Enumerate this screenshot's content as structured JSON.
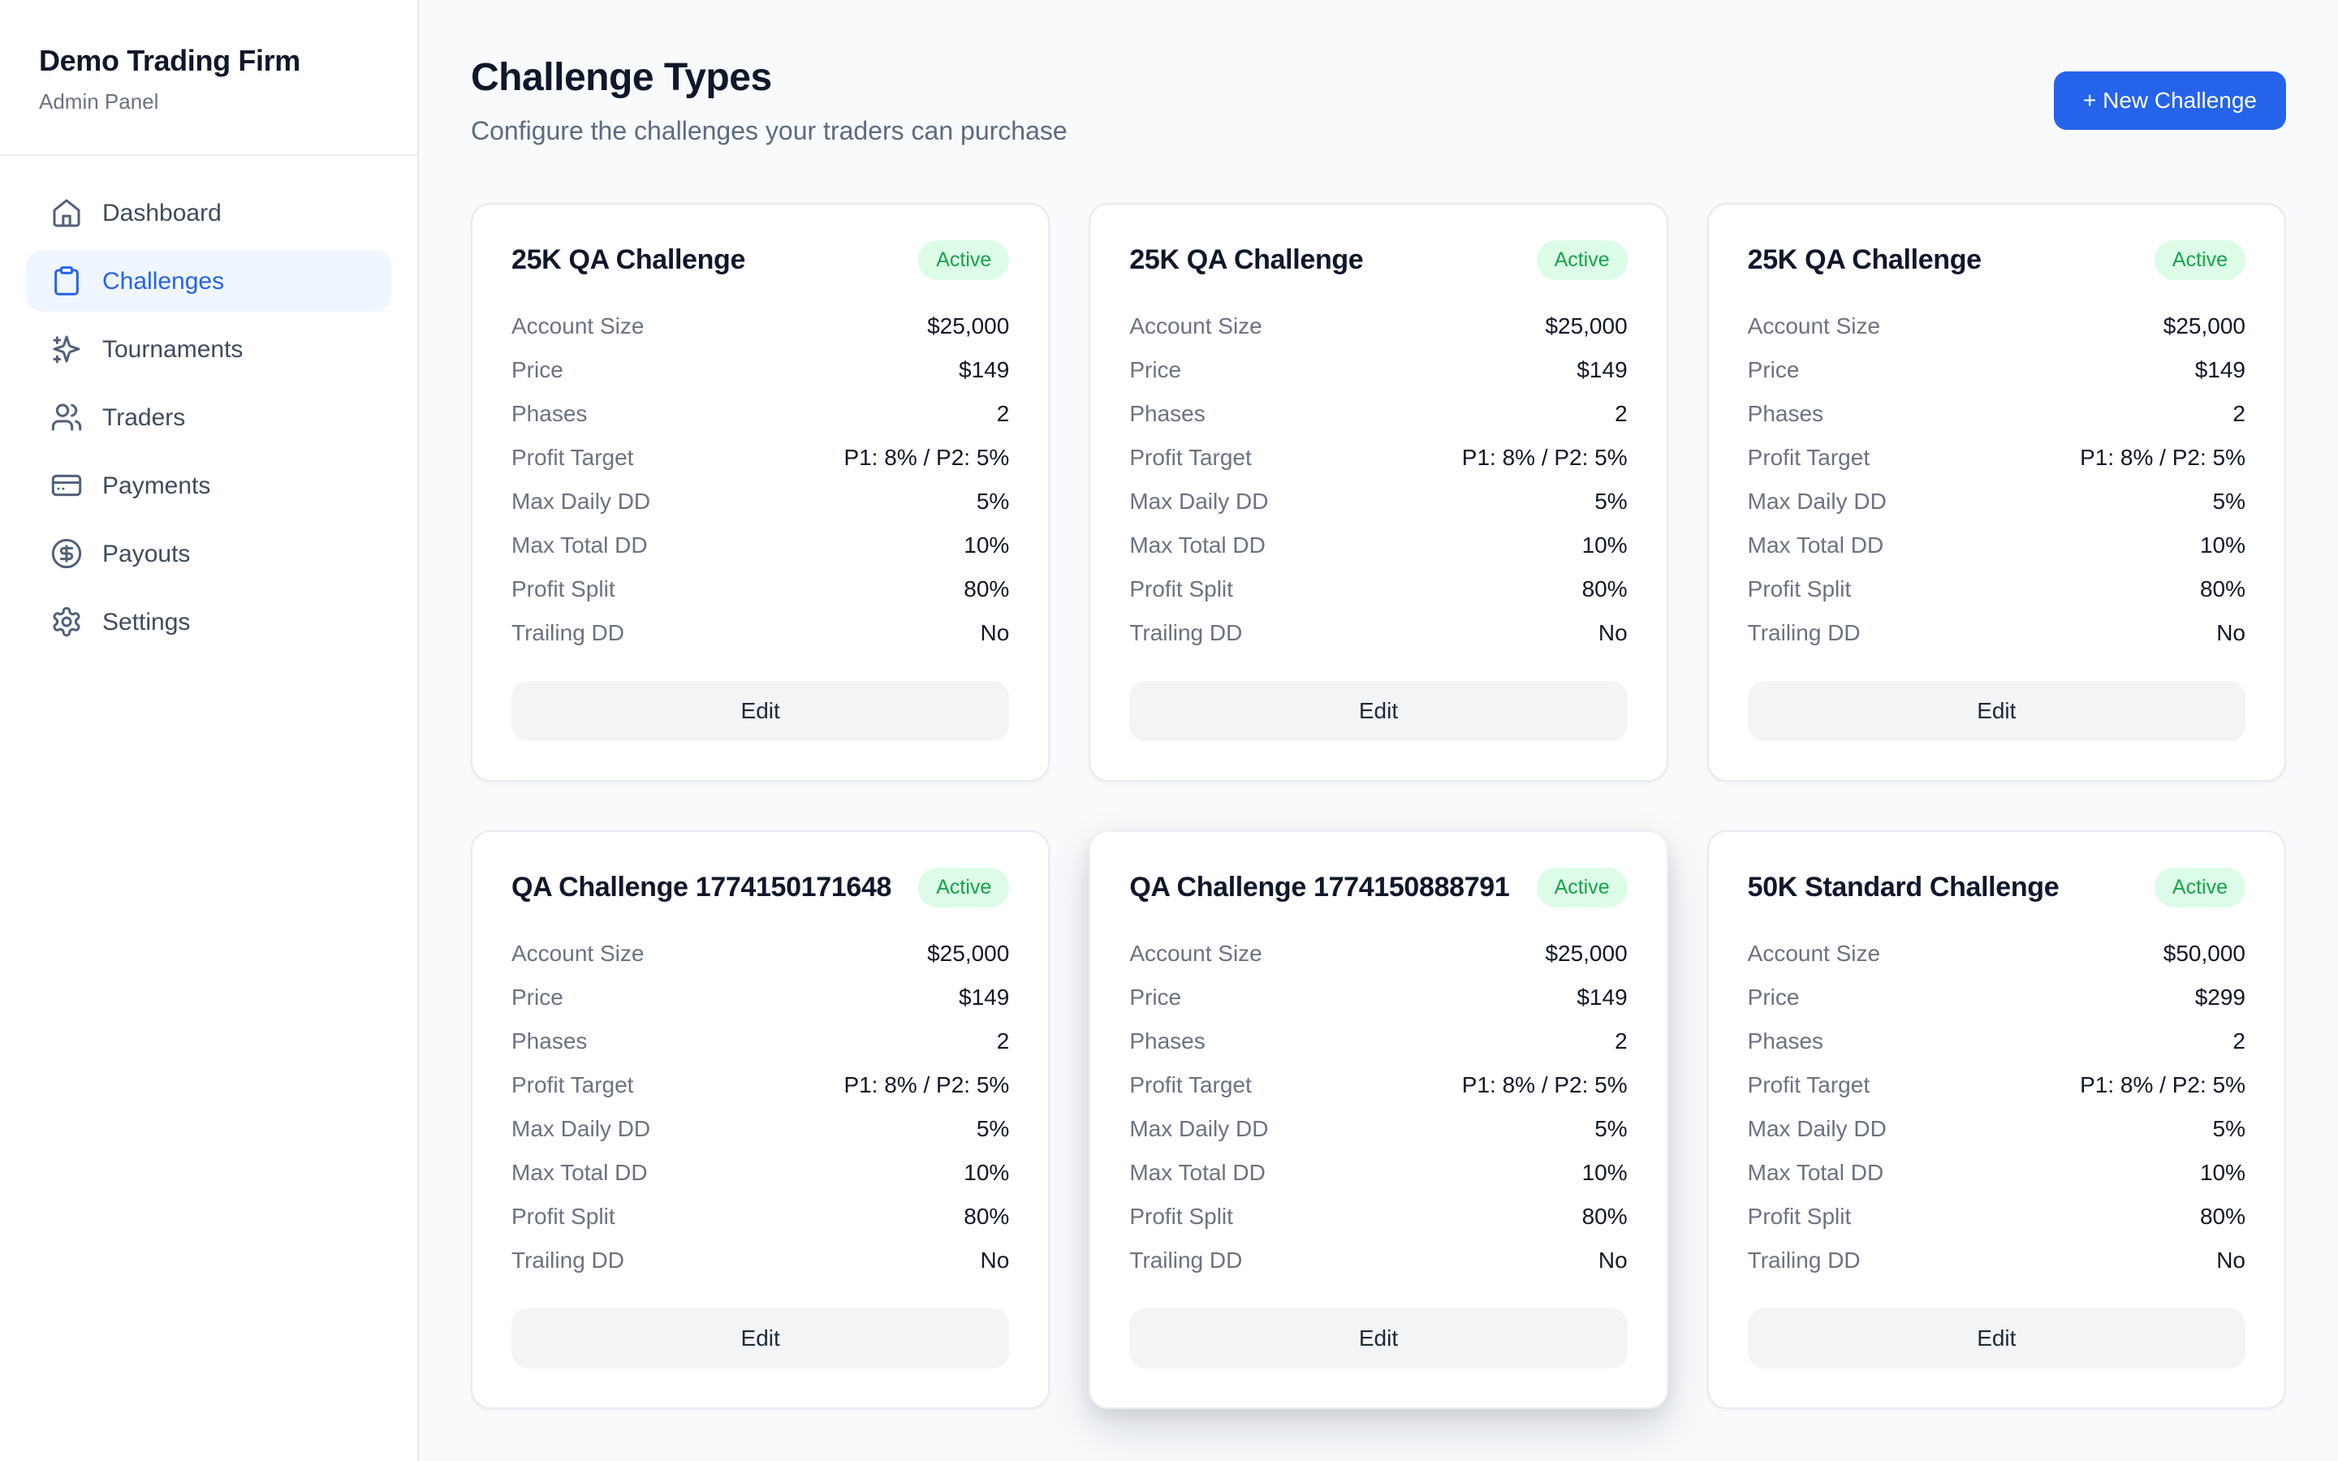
{
  "sidebar": {
    "title": "Demo Trading Firm",
    "subtitle": "Admin Panel",
    "items": [
      {
        "label": "Dashboard",
        "icon": "home",
        "active": false
      },
      {
        "label": "Challenges",
        "icon": "clipboard",
        "active": true
      },
      {
        "label": "Tournaments",
        "icon": "sparkles",
        "active": false
      },
      {
        "label": "Traders",
        "icon": "users",
        "active": false
      },
      {
        "label": "Payments",
        "icon": "credit-card",
        "active": false
      },
      {
        "label": "Payouts",
        "icon": "dollar-circle",
        "active": false
      },
      {
        "label": "Settings",
        "icon": "gear",
        "active": false
      }
    ]
  },
  "header": {
    "title": "Challenge Types",
    "subtitle": "Configure the challenges your traders can purchase",
    "new_challenge_label": "+ New Challenge"
  },
  "cards": [
    {
      "title": "25K QA Challenge",
      "status": "Active",
      "elevated": false,
      "edit_label": "Edit",
      "rows": [
        {
          "label": "Account Size",
          "value": "$25,000"
        },
        {
          "label": "Price",
          "value": "$149"
        },
        {
          "label": "Phases",
          "value": "2"
        },
        {
          "label": "Profit Target",
          "value": "P1: 8% / P2: 5%"
        },
        {
          "label": "Max Daily DD",
          "value": "5%"
        },
        {
          "label": "Max Total DD",
          "value": "10%"
        },
        {
          "label": "Profit Split",
          "value": "80%"
        },
        {
          "label": "Trailing DD",
          "value": "No"
        }
      ]
    },
    {
      "title": "25K QA Challenge",
      "status": "Active",
      "elevated": false,
      "edit_label": "Edit",
      "rows": [
        {
          "label": "Account Size",
          "value": "$25,000"
        },
        {
          "label": "Price",
          "value": "$149"
        },
        {
          "label": "Phases",
          "value": "2"
        },
        {
          "label": "Profit Target",
          "value": "P1: 8% / P2: 5%"
        },
        {
          "label": "Max Daily DD",
          "value": "5%"
        },
        {
          "label": "Max Total DD",
          "value": "10%"
        },
        {
          "label": "Profit Split",
          "value": "80%"
        },
        {
          "label": "Trailing DD",
          "value": "No"
        }
      ]
    },
    {
      "title": "25K QA Challenge",
      "status": "Active",
      "elevated": false,
      "edit_label": "Edit",
      "rows": [
        {
          "label": "Account Size",
          "value": "$25,000"
        },
        {
          "label": "Price",
          "value": "$149"
        },
        {
          "label": "Phases",
          "value": "2"
        },
        {
          "label": "Profit Target",
          "value": "P1: 8% / P2: 5%"
        },
        {
          "label": "Max Daily DD",
          "value": "5%"
        },
        {
          "label": "Max Total DD",
          "value": "10%"
        },
        {
          "label": "Profit Split",
          "value": "80%"
        },
        {
          "label": "Trailing DD",
          "value": "No"
        }
      ]
    },
    {
      "title": "QA Challenge 1774150171648",
      "status": "Active",
      "elevated": false,
      "edit_label": "Edit",
      "rows": [
        {
          "label": "Account Size",
          "value": "$25,000"
        },
        {
          "label": "Price",
          "value": "$149"
        },
        {
          "label": "Phases",
          "value": "2"
        },
        {
          "label": "Profit Target",
          "value": "P1: 8% / P2: 5%"
        },
        {
          "label": "Max Daily DD",
          "value": "5%"
        },
        {
          "label": "Max Total DD",
          "value": "10%"
        },
        {
          "label": "Profit Split",
          "value": "80%"
        },
        {
          "label": "Trailing DD",
          "value": "No"
        }
      ]
    },
    {
      "title": "QA Challenge 1774150888791",
      "status": "Active",
      "elevated": true,
      "edit_label": "Edit",
      "rows": [
        {
          "label": "Account Size",
          "value": "$25,000"
        },
        {
          "label": "Price",
          "value": "$149"
        },
        {
          "label": "Phases",
          "value": "2"
        },
        {
          "label": "Profit Target",
          "value": "P1: 8% / P2: 5%"
        },
        {
          "label": "Max Daily DD",
          "value": "5%"
        },
        {
          "label": "Max Total DD",
          "value": "10%"
        },
        {
          "label": "Profit Split",
          "value": "80%"
        },
        {
          "label": "Trailing DD",
          "value": "No"
        }
      ]
    },
    {
      "title": "50K Standard Challenge",
      "status": "Active",
      "elevated": false,
      "edit_label": "Edit",
      "rows": [
        {
          "label": "Account Size",
          "value": "$50,000"
        },
        {
          "label": "Price",
          "value": "$299"
        },
        {
          "label": "Phases",
          "value": "2"
        },
        {
          "label": "Profit Target",
          "value": "P1: 8% / P2: 5%"
        },
        {
          "label": "Max Daily DD",
          "value": "5%"
        },
        {
          "label": "Max Total DD",
          "value": "10%"
        },
        {
          "label": "Profit Split",
          "value": "80%"
        },
        {
          "label": "Trailing DD",
          "value": "No"
        }
      ]
    }
  ],
  "colors": {
    "accent_blue": "#2563eb",
    "active_nav_bg": "#eff6ff",
    "badge_bg": "#dcfce7",
    "badge_text": "#16a34a",
    "page_bg": "#f8fafc",
    "card_border": "#e7eaf0"
  }
}
